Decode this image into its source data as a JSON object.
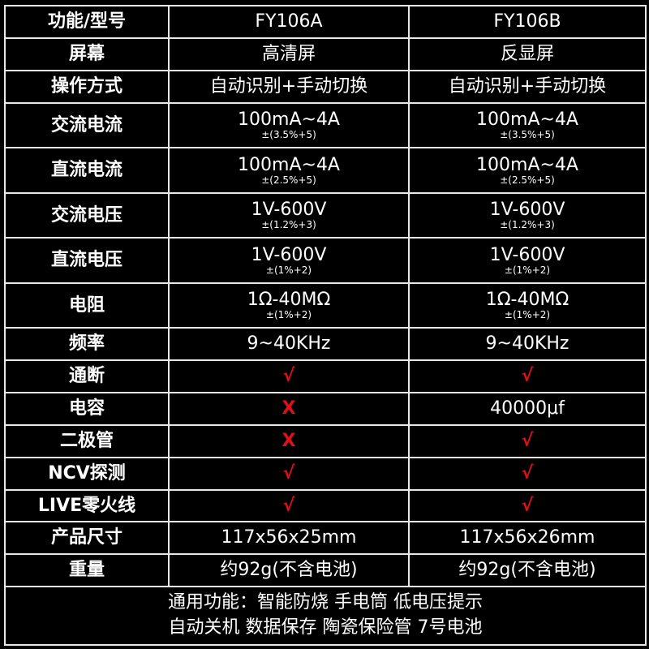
{
  "header": {
    "label": "功能/型号",
    "models": [
      "FY106A",
      "FY106B"
    ]
  },
  "rows": [
    {
      "label": "屏幕",
      "a": {
        "main": "高清屏"
      },
      "b": {
        "main": "反显屏"
      }
    },
    {
      "label": "操作方式",
      "a": {
        "main": "自动识别+手动切换"
      },
      "b": {
        "main": "自动识别+手动切换"
      }
    },
    {
      "label": "交流电流",
      "a": {
        "main": "100mA~4A",
        "sub": "±(3.5%+5)"
      },
      "b": {
        "main": "100mA~4A",
        "sub": "±(3.5%+5)"
      }
    },
    {
      "label": "直流电流",
      "a": {
        "main": "100mA~4A",
        "sub": "±(2.5%+5)"
      },
      "b": {
        "main": "100mA~4A",
        "sub": "±(2.5%+5)"
      }
    },
    {
      "label": "交流电压",
      "a": {
        "main": "1V-600V",
        "sub": "±(1.2%+3)"
      },
      "b": {
        "main": "1V-600V",
        "sub": "±(1.2%+3)"
      }
    },
    {
      "label": "直流电压",
      "a": {
        "main": "1V-600V",
        "sub": "±(1%+2)"
      },
      "b": {
        "main": "1V-600V",
        "sub": "±(1%+2)"
      }
    },
    {
      "label": "电阻",
      "a": {
        "main": "1Ω-40MΩ",
        "sub": "±(1%+2)"
      },
      "b": {
        "main": "1Ω-40MΩ",
        "sub": "±(1%+2)"
      }
    },
    {
      "label": "频率",
      "a": {
        "main": "9~40KHz"
      },
      "b": {
        "main": "9~40KHz"
      }
    },
    {
      "label": "通断",
      "a": {
        "mark": "√"
      },
      "b": {
        "mark": "√"
      }
    },
    {
      "label": "电容",
      "a": {
        "mark": "X"
      },
      "b": {
        "main": "40000μf"
      }
    },
    {
      "label": "二极管",
      "a": {
        "mark": "X"
      },
      "b": {
        "mark": "√"
      }
    },
    {
      "label": "NCV探测",
      "a": {
        "mark": "√"
      },
      "b": {
        "mark": "√"
      }
    },
    {
      "label": "LIVE零火线",
      "a": {
        "mark": "√"
      },
      "b": {
        "mark": "√"
      }
    },
    {
      "label": "产品尺寸",
      "a": {
        "main": "117x56x25mm"
      },
      "b": {
        "main": "117x56x26mm"
      }
    },
    {
      "label": "重量",
      "a": {
        "main": "约92g(不含电池)"
      },
      "b": {
        "main": "约92g(不含电池)"
      }
    }
  ],
  "footer": {
    "line1": "通用功能：智能防烧 手电筒 低电压提示",
    "line2": "自动关机 数据保存 陶瓷保险管 7号电池"
  },
  "colors": {
    "background": "#000000",
    "text": "#ffffff",
    "mark": "#e0101a",
    "grid": "#e8e8e8"
  }
}
